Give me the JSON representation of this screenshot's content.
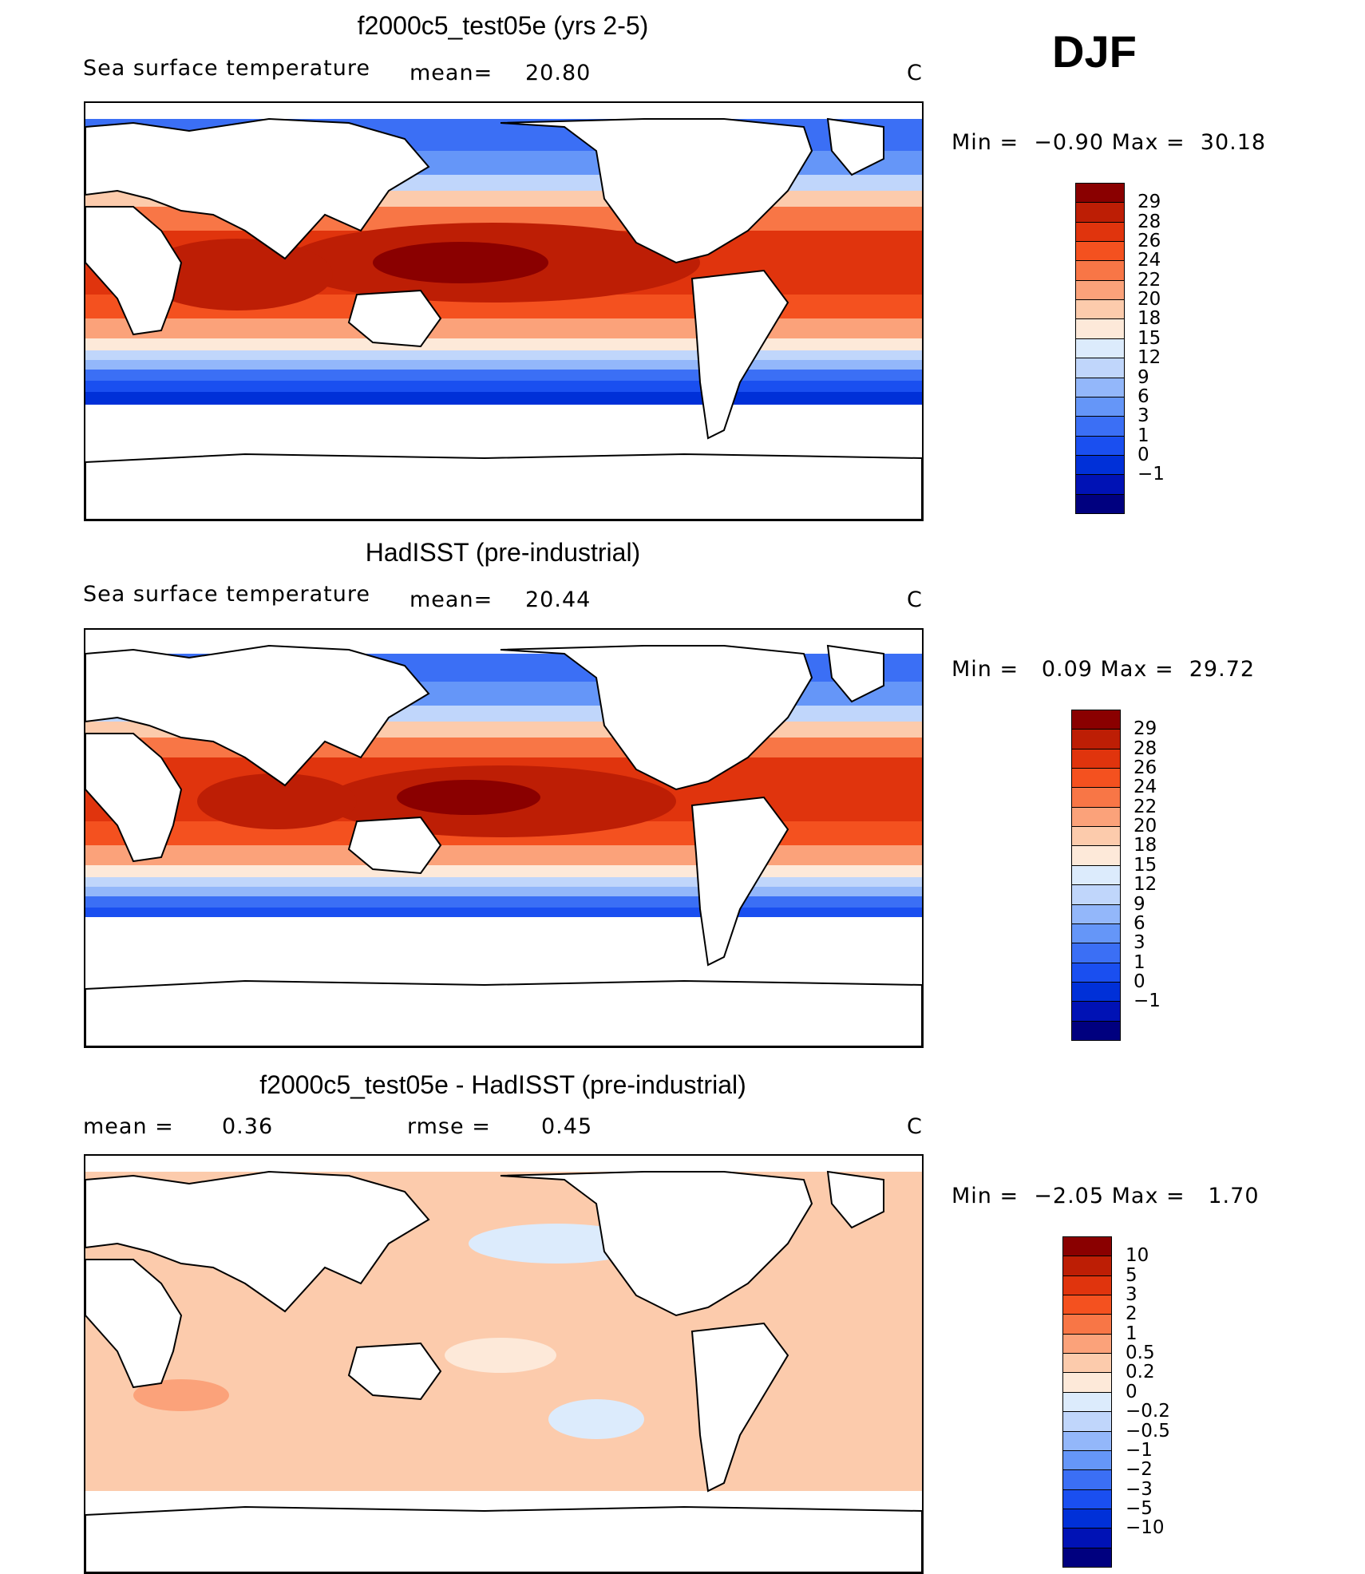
{
  "season": "DJF",
  "colors": {
    "abs_scale": [
      "#00007f",
      "#0012b5",
      "#0030d8",
      "#1a4ff0",
      "#3b6ff5",
      "#6596f8",
      "#93b7fa",
      "#c0d6fb",
      "#dcebfc",
      "#fde9d9",
      "#fccbac",
      "#fba27a",
      "#f87646",
      "#f4511f",
      "#e0340d",
      "#bd1e05",
      "#8a0000"
    ],
    "diff_scale": [
      "#00007f",
      "#0012b5",
      "#0030d8",
      "#1a4ff0",
      "#3b6ff5",
      "#6596f8",
      "#93b7fa",
      "#c0d6fb",
      "#dcebfc",
      "#fde9d9",
      "#fccbac",
      "#fba27a",
      "#f87646",
      "#f4511f",
      "#e0340d",
      "#bd1e05",
      "#8a0000"
    ],
    "land": "#ffffff",
    "coast": "#000000"
  },
  "panels": [
    {
      "title": "f2000c5_test05e (yrs 2-5)",
      "variable": "Sea surface temperature",
      "stat_label": "mean=",
      "stat_value": "20.80",
      "units": "C",
      "min_max": "Min =  −0.90 Max =  30.18",
      "colorbar_labels": [
        "29",
        "28",
        "26",
        "24",
        "22",
        "20",
        "18",
        "15",
        "12",
        "9",
        "6",
        "3",
        "1",
        "0",
        "−1"
      ],
      "map": {
        "warm_pool_level": 30.18,
        "cold_level": -0.9
      }
    },
    {
      "title": "HadISST (pre-industrial)",
      "variable": "Sea surface temperature",
      "stat_label": "mean=",
      "stat_value": "20.44",
      "units": "C",
      "min_max": "Min =   0.09 Max =  29.72",
      "colorbar_labels": [
        "29",
        "28",
        "26",
        "24",
        "22",
        "20",
        "18",
        "15",
        "12",
        "9",
        "6",
        "3",
        "1",
        "0",
        "−1"
      ],
      "map": {
        "warm_pool_level": 29.72,
        "cold_level": 0.09
      }
    },
    {
      "title": "f2000c5_test05e - HadISST (pre-industrial)",
      "stat_label": "mean =",
      "stat_value": "0.36",
      "stat2_label": "rmse =",
      "stat2_value": "0.45",
      "units": "C",
      "min_max": "Min =  −2.05 Max =   1.70",
      "colorbar_labels": [
        "10",
        "5",
        "3",
        "2",
        "1",
        "0.5",
        "0.2",
        "0",
        "−0.2",
        "−0.5",
        "−1",
        "−2",
        "−3",
        "−5",
        "−10"
      ],
      "map": {
        "min": -2.05,
        "max": 1.7
      }
    }
  ]
}
